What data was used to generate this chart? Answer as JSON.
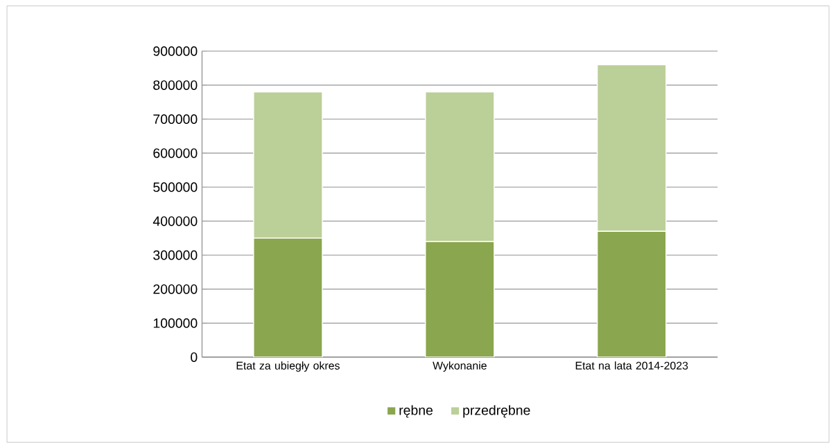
{
  "chart_data": {
    "type": "bar",
    "stacked": true,
    "categories": [
      "Etat za ubiegły okres",
      "Wykonanie",
      "Etat na lata 2014-2023"
    ],
    "series": [
      {
        "name": "rębne",
        "color": "#8aa64e",
        "values": [
          350000,
          340000,
          370000
        ]
      },
      {
        "name": "przedrębne",
        "color": "#bbcf98",
        "values": [
          430000,
          440000,
          490000
        ]
      }
    ],
    "ylim": [
      0,
      900000
    ],
    "yticks": [
      0,
      100000,
      200000,
      300000,
      400000,
      500000,
      600000,
      700000,
      800000,
      900000
    ],
    "grid": "y",
    "legend": "bottom"
  }
}
